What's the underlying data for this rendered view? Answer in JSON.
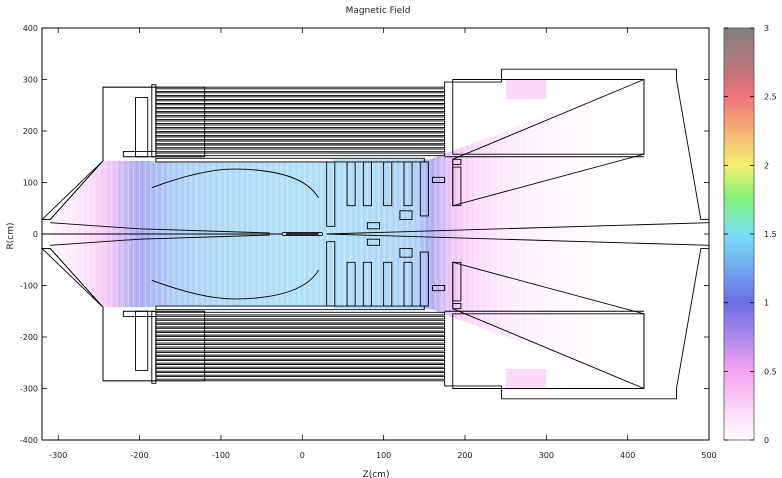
{
  "chart_data": {
    "type": "heatmap",
    "title": "Magnetic Field",
    "xlabel": "Z(cm)",
    "ylabel": "R(cm)",
    "xlim": [
      -320,
      500
    ],
    "ylim": [
      -400,
      400
    ],
    "xticks": [
      -300,
      -200,
      -100,
      0,
      100,
      200,
      300,
      400,
      500
    ],
    "yticks": [
      -400,
      -300,
      -200,
      -100,
      0,
      100,
      200,
      300,
      400
    ],
    "colorbar": {
      "min": 0,
      "max": 3,
      "ticks": [
        0,
        0.5,
        1,
        1.5,
        2,
        2.5,
        3
      ],
      "stops": [
        {
          "value": 0,
          "color": "#ffffff"
        },
        {
          "value": 0.5,
          "color": "#f5a3f0"
        },
        {
          "value": 1,
          "color": "#6a6ee8"
        },
        {
          "value": 1.5,
          "color": "#79dff5"
        },
        {
          "value": 1.75,
          "color": "#7ef07a"
        },
        {
          "value": 2,
          "color": "#f5f070"
        },
        {
          "value": 2.5,
          "color": "#f2727a"
        },
        {
          "value": 2.75,
          "color": "#b0787c"
        },
        {
          "value": 3,
          "color": "#808080"
        }
      ]
    },
    "field_samples": [
      {
        "z": -310,
        "b": 0.1
      },
      {
        "z": -280,
        "b": 0.2
      },
      {
        "z": -260,
        "b": 0.35
      },
      {
        "z": -240,
        "b": 0.55
      },
      {
        "z": -220,
        "b": 0.8
      },
      {
        "z": -200,
        "b": 1.0
      },
      {
        "z": -180,
        "b": 1.15
      },
      {
        "z": -150,
        "b": 1.3
      },
      {
        "z": -100,
        "b": 1.35
      },
      {
        "z": -50,
        "b": 1.38
      },
      {
        "z": 0,
        "b": 1.4
      },
      {
        "z": 50,
        "b": 1.38
      },
      {
        "z": 100,
        "b": 1.35
      },
      {
        "z": 140,
        "b": 1.3
      },
      {
        "z": 160,
        "b": 0.9
      },
      {
        "z": 180,
        "b": 0.6
      },
      {
        "z": 200,
        "b": 0.4
      },
      {
        "z": 230,
        "b": 0.25
      },
      {
        "z": 260,
        "b": 0.15
      },
      {
        "z": 300,
        "b": 0.08
      },
      {
        "z": 350,
        "b": 0.04
      },
      {
        "z": 400,
        "b": 0.02
      },
      {
        "z": 420,
        "b": 0.0
      }
    ],
    "grid": false,
    "legend": "colorbar-right"
  }
}
